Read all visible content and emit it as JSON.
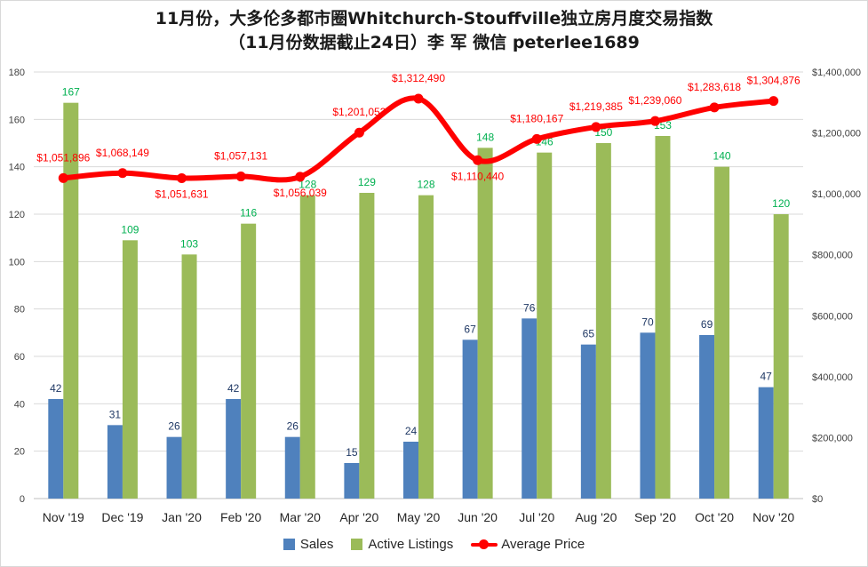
{
  "title": {
    "line1": "11月份，大多伦多都市圈Whitchurch-Stouffville独立房月度交易指数",
    "line2": "（11月份数据截止24日）李 军  微信  peterlee1689"
  },
  "legend": {
    "sales": "Sales",
    "active": "Active Listings",
    "price": "Average Price"
  },
  "colors": {
    "sales": "#4f81bd",
    "active": "#9bbb59",
    "price": "#ff0000",
    "active_label": "#00b050",
    "sales_label": "#1f3864",
    "price_label": "#ff0000"
  },
  "chart_data": {
    "type": "bar",
    "categories": [
      "Nov '19",
      "Dec '19",
      "Jan '20",
      "Feb '20",
      "Mar '20",
      "Apr '20",
      "May '20",
      "Jun '20",
      "Jul '20",
      "Aug '20",
      "Sep '20",
      "Oct '20",
      "Nov '20"
    ],
    "series": [
      {
        "name": "Sales",
        "type": "bar",
        "axis": "left",
        "values": [
          42,
          31,
          26,
          42,
          26,
          15,
          24,
          67,
          76,
          65,
          70,
          69,
          47
        ],
        "labels": [
          "42",
          "31",
          "26",
          "42",
          "26",
          "15",
          "24",
          "67",
          "76",
          "65",
          "70",
          "69",
          "47"
        ]
      },
      {
        "name": "Active Listings",
        "type": "bar",
        "axis": "left",
        "values": [
          167,
          109,
          103,
          116,
          128,
          129,
          128,
          148,
          146,
          150,
          153,
          140,
          120
        ],
        "labels": [
          "167",
          "109",
          "103",
          "116",
          "128",
          "129",
          "128",
          "148",
          "146",
          "150",
          "153",
          "140",
          "120"
        ]
      },
      {
        "name": "Average Price",
        "type": "line",
        "axis": "right",
        "values": [
          1051896,
          1068149,
          1051631,
          1057131,
          1056039,
          1201053,
          1312490,
          1110440,
          1180167,
          1219385,
          1239060,
          1283618,
          1304876
        ],
        "labels": [
          "$1,051,896",
          "$1,068,149",
          "$1,051,631",
          "$1,057,131",
          "$1,056,039",
          "$1,201,053",
          "$1,312,490",
          "$1,110,440",
          "$1,180,167",
          "$1,219,385",
          "$1,239,060",
          "$1,283,618",
          "$1,304,876"
        ]
      }
    ],
    "y_left": {
      "min": 0,
      "max": 180,
      "ticks": [
        "0",
        "20",
        "40",
        "60",
        "80",
        "100",
        "120",
        "140",
        "160",
        "180"
      ]
    },
    "y_right": {
      "min": 0,
      "max": 1400000,
      "ticks": [
        "$0",
        "$200,000",
        "$400,000",
        "$600,000",
        "$800,000",
        "$1,000,000",
        "$1,200,000",
        "$1,400,000"
      ]
    },
    "grid": true,
    "legend_position": "bottom"
  }
}
